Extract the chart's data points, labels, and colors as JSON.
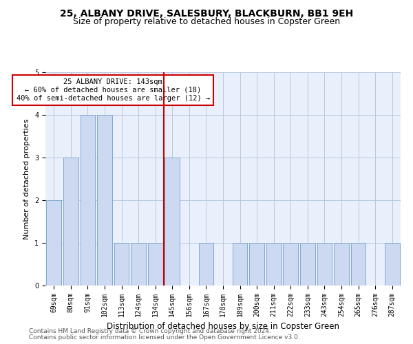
{
  "title1": "25, ALBANY DRIVE, SALESBURY, BLACKBURN, BB1 9EH",
  "title2": "Size of property relative to detached houses in Copster Green",
  "xlabel": "Distribution of detached houses by size in Copster Green",
  "ylabel": "Number of detached properties",
  "categories": [
    "69sqm",
    "80sqm",
    "91sqm",
    "102sqm",
    "113sqm",
    "124sqm",
    "134sqm",
    "145sqm",
    "156sqm",
    "167sqm",
    "178sqm",
    "189sqm",
    "200sqm",
    "211sqm",
    "222sqm",
    "233sqm",
    "243sqm",
    "254sqm",
    "265sqm",
    "276sqm",
    "287sqm"
  ],
  "values": [
    2,
    3,
    4,
    4,
    1,
    1,
    1,
    3,
    0,
    1,
    0,
    1,
    1,
    1,
    1,
    1,
    1,
    1,
    1,
    0,
    1
  ],
  "highlight_index": 7,
  "bar_color": "#ccd9f0",
  "bar_edgecolor": "#7fa8d0",
  "highlight_line_color": "#cc0000",
  "ylim": [
    0,
    5
  ],
  "yticks": [
    0,
    1,
    2,
    3,
    4,
    5
  ],
  "annotation_title": "25 ALBANY DRIVE: 143sqm",
  "annotation_line1": "← 60% of detached houses are smaller (18)",
  "annotation_line2": "40% of semi-detached houses are larger (12) →",
  "annotation_box_color": "#ffffff",
  "annotation_box_edgecolor": "#cc0000",
  "footer1": "Contains HM Land Registry data © Crown copyright and database right 2024.",
  "footer2": "Contains public sector information licensed under the Open Government Licence v3.0.",
  "bg_color": "#eaf0fb",
  "grid_color": "#b8c8de",
  "title1_fontsize": 10,
  "title2_fontsize": 9,
  "xlabel_fontsize": 8.5,
  "ylabel_fontsize": 8,
  "tick_fontsize": 7,
  "footer_fontsize": 6.5,
  "ann_fontsize": 7.5
}
